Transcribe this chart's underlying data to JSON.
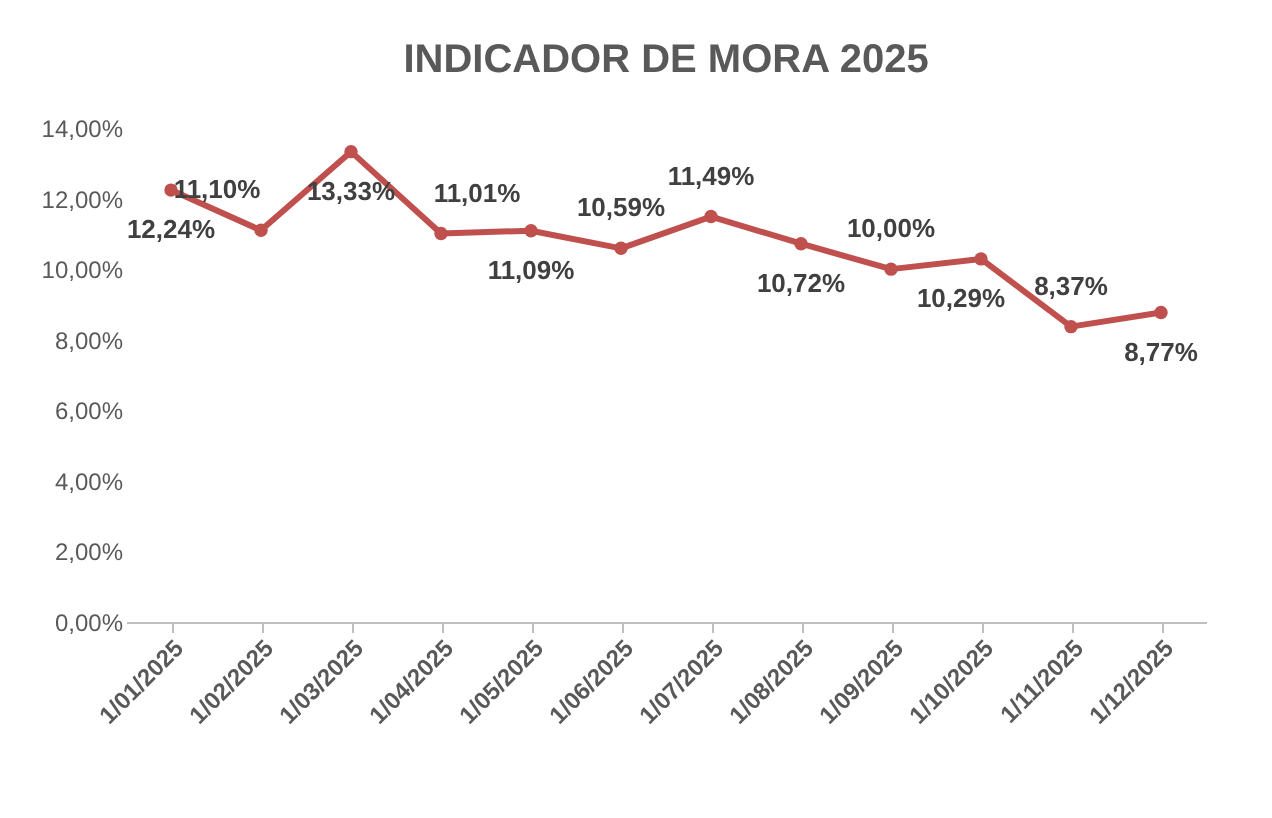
{
  "chart_data": {
    "type": "line",
    "title": "INDICADOR DE MORA 2025",
    "categories": [
      "1/01/2025",
      "1/02/2025",
      "1/03/2025",
      "1/04/2025",
      "1/05/2025",
      "1/06/2025",
      "1/07/2025",
      "1/08/2025",
      "1/09/2025",
      "1/10/2025",
      "1/11/2025",
      "1/12/2025"
    ],
    "series": [
      {
        "color": "#c0504d",
        "values": [
          12.24,
          11.1,
          13.33,
          11.01,
          11.09,
          10.59,
          11.49,
          10.72,
          10.0,
          10.29,
          8.37,
          8.77
        ],
        "value_labels": [
          "12,24%",
          "11,10%",
          "13,33%",
          "11,01%",
          "11,09%",
          "10,59%",
          "11,49%",
          "10,72%",
          "10,00%",
          "10,29%",
          "8,37%",
          "8,77%"
        ]
      }
    ],
    "ylim": [
      0,
      14
    ],
    "yticks": [
      {
        "value": 0,
        "label": "0,00%"
      },
      {
        "value": 2,
        "label": "2,00%"
      },
      {
        "value": 4,
        "label": "4,00%"
      },
      {
        "value": 6,
        "label": "6,00%"
      },
      {
        "value": 8,
        "label": "8,00%"
      },
      {
        "value": 10,
        "label": "10,00%"
      },
      {
        "value": 12,
        "label": "12,00%"
      },
      {
        "value": 14,
        "label": "14,00%"
      }
    ],
    "grid": false,
    "legend": false,
    "marker": "circle",
    "line_style": "solid"
  }
}
